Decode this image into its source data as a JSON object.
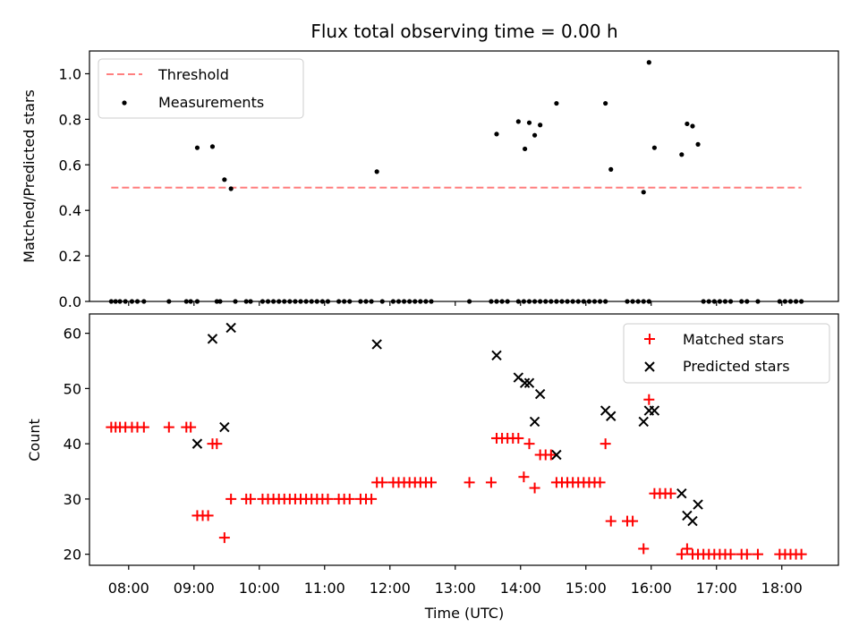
{
  "chart_data": [
    {
      "type": "scatter",
      "title": "Flux total observing time = 0.00 h",
      "xlabel": "",
      "ylabel": "Matched/Predicted stars",
      "xlim": [
        "07:24",
        "18:52"
      ],
      "ylim": [
        0,
        1.1
      ],
      "yticks": [
        "0.0",
        "0.2",
        "0.4",
        "0.6",
        "0.8",
        "1.0"
      ],
      "legend_position": "top-left",
      "threshold": {
        "name": "Threshold",
        "value": 0.5,
        "x_range": [
          "07:44",
          "18:18"
        ],
        "color": "#ff7f7f",
        "style": "dashed"
      },
      "series": [
        {
          "name": "Measurements",
          "color": "#000000",
          "marker": "dot",
          "points": [
            [
              "07:44",
              0
            ],
            [
              "07:48",
              0
            ],
            [
              "07:52",
              0
            ],
            [
              "07:57",
              0
            ],
            [
              "08:03",
              0
            ],
            [
              "08:08",
              0
            ],
            [
              "08:14",
              0
            ],
            [
              "08:37",
              0
            ],
            [
              "08:53",
              0
            ],
            [
              "08:57",
              0
            ],
            [
              "09:03",
              0
            ],
            [
              "09:03",
              0.675
            ],
            [
              "09:17",
              0.68
            ],
            [
              "09:28",
              0.535
            ],
            [
              "09:34",
              0.495
            ],
            [
              "09:21",
              0
            ],
            [
              "09:24",
              0
            ],
            [
              "09:38",
              0
            ],
            [
              "09:48",
              0
            ],
            [
              "09:52",
              0
            ],
            [
              "10:03",
              0
            ],
            [
              "10:08",
              0
            ],
            [
              "10:13",
              0
            ],
            [
              "10:18",
              0
            ],
            [
              "10:23",
              0
            ],
            [
              "10:28",
              0
            ],
            [
              "10:33",
              0
            ],
            [
              "10:38",
              0
            ],
            [
              "10:43",
              0
            ],
            [
              "10:48",
              0
            ],
            [
              "10:53",
              0
            ],
            [
              "10:58",
              0
            ],
            [
              "11:03",
              0
            ],
            [
              "11:13",
              0
            ],
            [
              "11:18",
              0
            ],
            [
              "11:23",
              0
            ],
            [
              "11:33",
              0
            ],
            [
              "11:38",
              0
            ],
            [
              "11:43",
              0
            ],
            [
              "11:48",
              0.57
            ],
            [
              "11:53",
              0
            ],
            [
              "12:03",
              0
            ],
            [
              "12:08",
              0
            ],
            [
              "12:13",
              0
            ],
            [
              "12:18",
              0
            ],
            [
              "12:23",
              0
            ],
            [
              "12:28",
              0
            ],
            [
              "12:33",
              0
            ],
            [
              "12:38",
              0
            ],
            [
              "13:13",
              0
            ],
            [
              "13:33",
              0
            ],
            [
              "13:38",
              0
            ],
            [
              "13:43",
              0
            ],
            [
              "13:48",
              0
            ],
            [
              "13:58",
              0
            ],
            [
              "14:03",
              0
            ],
            [
              "14:08",
              0
            ],
            [
              "14:13",
              0
            ],
            [
              "14:18",
              0
            ],
            [
              "14:23",
              0
            ],
            [
              "13:38",
              0.735
            ],
            [
              "13:58",
              0.79
            ],
            [
              "14:04",
              0.67
            ],
            [
              "14:08",
              0.785
            ],
            [
              "14:13",
              0.73
            ],
            [
              "14:18",
              0.775
            ],
            [
              "14:28",
              0
            ],
            [
              "14:33",
              0
            ],
            [
              "14:38",
              0
            ],
            [
              "14:43",
              0
            ],
            [
              "14:48",
              0
            ],
            [
              "14:53",
              0
            ],
            [
              "14:58",
              0
            ],
            [
              "15:03",
              0
            ],
            [
              "15:08",
              0
            ],
            [
              "15:13",
              0
            ],
            [
              "15:18",
              0
            ],
            [
              "14:33",
              0.87
            ],
            [
              "15:18",
              0.87
            ],
            [
              "15:23",
              0.58
            ],
            [
              "15:38",
              0
            ],
            [
              "15:43",
              0
            ],
            [
              "15:48",
              0
            ],
            [
              "15:53",
              0
            ],
            [
              "15:58",
              0
            ],
            [
              "15:53",
              0.48
            ],
            [
              "15:58",
              1.05
            ],
            [
              "16:03",
              0.675
            ],
            [
              "16:28",
              0.645
            ],
            [
              "16:33",
              0.78
            ],
            [
              "16:38",
              0.77
            ],
            [
              "16:43",
              0.69
            ],
            [
              "16:48",
              0
            ],
            [
              "16:53",
              0
            ],
            [
              "16:58",
              0
            ],
            [
              "17:03",
              0
            ],
            [
              "17:08",
              0
            ],
            [
              "17:13",
              0
            ],
            [
              "17:23",
              0
            ],
            [
              "17:28",
              0
            ],
            [
              "17:38",
              0
            ],
            [
              "17:58",
              0
            ],
            [
              "18:03",
              0
            ],
            [
              "18:08",
              0
            ],
            [
              "18:13",
              0
            ],
            [
              "18:18",
              0
            ]
          ]
        }
      ]
    },
    {
      "type": "scatter",
      "title": "",
      "xlabel": "Time (UTC)",
      "ylabel": "Count",
      "xlim": [
        "07:24",
        "18:52"
      ],
      "ylim": [
        18,
        63.5
      ],
      "xticks": [
        "08:00",
        "09:00",
        "10:00",
        "11:00",
        "12:00",
        "13:00",
        "14:00",
        "15:00",
        "16:00",
        "17:00",
        "18:00"
      ],
      "yticks": [
        "20",
        "30",
        "40",
        "50",
        "60"
      ],
      "legend_position": "top-right",
      "series": [
        {
          "name": "Matched stars",
          "color": "#ff0000",
          "marker": "plus",
          "points": [
            [
              "07:44",
              43
            ],
            [
              "07:48",
              43
            ],
            [
              "07:52",
              43
            ],
            [
              "07:57",
              43
            ],
            [
              "08:03",
              43
            ],
            [
              "08:08",
              43
            ],
            [
              "08:14",
              43
            ],
            [
              "08:37",
              43
            ],
            [
              "08:53",
              43
            ],
            [
              "08:57",
              43
            ],
            [
              "09:03",
              27
            ],
            [
              "09:08",
              27
            ],
            [
              "09:13",
              27
            ],
            [
              "09:17",
              40
            ],
            [
              "09:21",
              40
            ],
            [
              "09:28",
              23
            ],
            [
              "09:34",
              30
            ],
            [
              "09:48",
              30
            ],
            [
              "09:52",
              30
            ],
            [
              "10:03",
              30
            ],
            [
              "10:08",
              30
            ],
            [
              "10:13",
              30
            ],
            [
              "10:18",
              30
            ],
            [
              "10:23",
              30
            ],
            [
              "10:28",
              30
            ],
            [
              "10:33",
              30
            ],
            [
              "10:38",
              30
            ],
            [
              "10:43",
              30
            ],
            [
              "10:48",
              30
            ],
            [
              "10:53",
              30
            ],
            [
              "10:58",
              30
            ],
            [
              "11:03",
              30
            ],
            [
              "11:13",
              30
            ],
            [
              "11:18",
              30
            ],
            [
              "11:23",
              30
            ],
            [
              "11:33",
              30
            ],
            [
              "11:38",
              30
            ],
            [
              "11:43",
              30
            ],
            [
              "11:48",
              33
            ],
            [
              "11:53",
              33
            ],
            [
              "12:03",
              33
            ],
            [
              "12:08",
              33
            ],
            [
              "12:13",
              33
            ],
            [
              "12:18",
              33
            ],
            [
              "12:23",
              33
            ],
            [
              "12:28",
              33
            ],
            [
              "12:33",
              33
            ],
            [
              "12:38",
              33
            ],
            [
              "13:13",
              33
            ],
            [
              "13:33",
              33
            ],
            [
              "13:38",
              41
            ],
            [
              "13:43",
              41
            ],
            [
              "13:48",
              41
            ],
            [
              "13:53",
              41
            ],
            [
              "13:58",
              41
            ],
            [
              "14:03",
              34
            ],
            [
              "14:08",
              40
            ],
            [
              "14:13",
              32
            ],
            [
              "14:18",
              38
            ],
            [
              "14:23",
              38
            ],
            [
              "14:28",
              38
            ],
            [
              "14:33",
              33
            ],
            [
              "14:38",
              33
            ],
            [
              "14:43",
              33
            ],
            [
              "14:48",
              33
            ],
            [
              "14:53",
              33
            ],
            [
              "14:58",
              33
            ],
            [
              "15:03",
              33
            ],
            [
              "15:08",
              33
            ],
            [
              "15:13",
              33
            ],
            [
              "15:18",
              40
            ],
            [
              "15:23",
              26
            ],
            [
              "15:38",
              26
            ],
            [
              "15:43",
              26
            ],
            [
              "15:53",
              21
            ],
            [
              "15:58",
              48
            ],
            [
              "16:03",
              31
            ],
            [
              "16:08",
              31
            ],
            [
              "16:13",
              31
            ],
            [
              "16:18",
              31
            ],
            [
              "16:28",
              20
            ],
            [
              "16:33",
              21
            ],
            [
              "16:38",
              20
            ],
            [
              "16:43",
              20
            ],
            [
              "16:48",
              20
            ],
            [
              "16:53",
              20
            ],
            [
              "16:58",
              20
            ],
            [
              "17:03",
              20
            ],
            [
              "17:08",
              20
            ],
            [
              "17:13",
              20
            ],
            [
              "17:23",
              20
            ],
            [
              "17:28",
              20
            ],
            [
              "17:38",
              20
            ],
            [
              "17:58",
              20
            ],
            [
              "18:03",
              20
            ],
            [
              "18:08",
              20
            ],
            [
              "18:13",
              20
            ],
            [
              "18:18",
              20
            ]
          ]
        },
        {
          "name": "Predicted stars",
          "color": "#000000",
          "marker": "x",
          "points": [
            [
              "09:03",
              40
            ],
            [
              "09:17",
              59
            ],
            [
              "09:28",
              43
            ],
            [
              "09:34",
              61
            ],
            [
              "11:48",
              58
            ],
            [
              "13:38",
              56
            ],
            [
              "13:58",
              52
            ],
            [
              "14:04",
              51
            ],
            [
              "14:08",
              51
            ],
            [
              "14:13",
              44
            ],
            [
              "14:18",
              49
            ],
            [
              "14:33",
              38
            ],
            [
              "15:18",
              46
            ],
            [
              "15:23",
              45
            ],
            [
              "15:53",
              44
            ],
            [
              "15:58",
              46
            ],
            [
              "16:03",
              46
            ],
            [
              "16:28",
              31
            ],
            [
              "16:33",
              27
            ],
            [
              "16:38",
              26
            ],
            [
              "16:43",
              29
            ]
          ]
        }
      ]
    }
  ]
}
